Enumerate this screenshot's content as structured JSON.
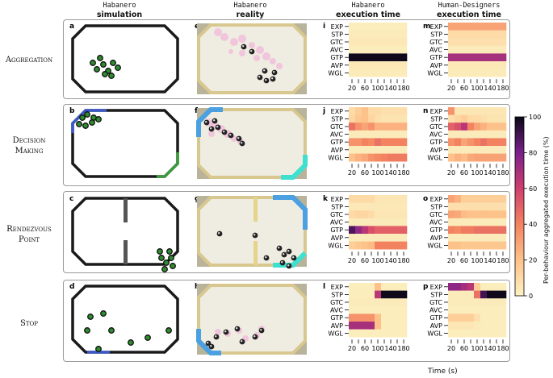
{
  "header": {
    "col1_mono": "Habanero",
    "col1_bold": "simulation",
    "col2_mono": "Habanero",
    "col2_bold": "reality",
    "col3_mono": "Habanero",
    "col3_bold": "execution time",
    "col4_mono": "Human-Designers",
    "col4_bold": "execution time"
  },
  "rows": [
    {
      "line1": "Aggregation",
      "line2": "",
      "panels": [
        "a",
        "e",
        "i",
        "m"
      ]
    },
    {
      "line1": "Decision",
      "line2": "Making",
      "panels": [
        "b",
        "f",
        "j",
        "n"
      ]
    },
    {
      "line1": "Rendezvous",
      "line2": "Point",
      "panels": [
        "c",
        "g",
        "k",
        "o"
      ]
    },
    {
      "line1": "Stop",
      "line2": "",
      "panels": [
        "d",
        "h",
        "l",
        "p"
      ]
    }
  ],
  "xaxis": {
    "label": "Time (s)"
  },
  "colorbar": {
    "title": "Per-behaviour aggregated execution time (%)",
    "ticks": [
      "0",
      "20",
      "40",
      "60",
      "80",
      "100"
    ]
  },
  "colors": {
    "arena_wall": "#1a1a1a",
    "robot": "#2e8b2e",
    "trail_pink": "#f2b8da",
    "decision_blue": "#3b58c8",
    "decision_green": "#3e9a3e",
    "cyan": "#3fe0d0",
    "floor": "#efece2"
  },
  "chart_data": {
    "type": "heatmap",
    "ylabels": [
      "EXP",
      "STP",
      "GTC",
      "AVC",
      "GTP",
      "AVP",
      "WGL"
    ],
    "xticks": [
      20,
      60,
      100,
      140,
      180
    ],
    "xlabel": "Time (s)",
    "zlim": [
      0,
      100
    ],
    "cmap": "magma_r",
    "columns": 9,
    "panels": [
      {
        "id": "i",
        "behaviour": "Aggregation",
        "designer": "Habanero",
        "values": [
          [
            2,
            2,
            2,
            2,
            2,
            2,
            2,
            2,
            2
          ],
          [
            3,
            3,
            3,
            3,
            3,
            3,
            3,
            3,
            3
          ],
          [
            4,
            4,
            4,
            4,
            4,
            4,
            4,
            4,
            4
          ],
          [
            2,
            2,
            2,
            2,
            2,
            2,
            2,
            2,
            2
          ],
          [
            99,
            99,
            99,
            99,
            99,
            99,
            99,
            99,
            99
          ],
          [
            4,
            4,
            4,
            4,
            4,
            4,
            4,
            4,
            4
          ],
          [
            3,
            3,
            3,
            3,
            3,
            3,
            3,
            3,
            3
          ]
        ]
      },
      {
        "id": "m",
        "behaviour": "Aggregation",
        "designer": "Human-Designers",
        "values": [
          [
            30,
            30,
            30,
            30,
            30,
            30,
            30,
            30,
            30
          ],
          [
            10,
            10,
            10,
            10,
            10,
            10,
            10,
            10,
            10
          ],
          [
            8,
            8,
            8,
            8,
            8,
            8,
            8,
            8,
            8
          ],
          [
            3,
            3,
            3,
            3,
            3,
            3,
            3,
            3,
            3
          ],
          [
            70,
            70,
            70,
            70,
            70,
            70,
            70,
            70,
            70
          ],
          [
            4,
            4,
            4,
            4,
            4,
            4,
            4,
            4,
            4
          ],
          [
            3,
            3,
            3,
            3,
            3,
            3,
            3,
            3,
            3
          ]
        ]
      },
      {
        "id": "j",
        "behaviour": "Decision Making",
        "designer": "Habanero",
        "values": [
          [
            10,
            15,
            20,
            10,
            10,
            8,
            8,
            8,
            8
          ],
          [
            12,
            18,
            20,
            12,
            8,
            6,
            6,
            6,
            6
          ],
          [
            45,
            35,
            30,
            35,
            25,
            25,
            25,
            25,
            25
          ],
          [
            3,
            3,
            3,
            3,
            3,
            3,
            3,
            3,
            3
          ],
          [
            35,
            35,
            40,
            38,
            45,
            40,
            40,
            40,
            40
          ],
          [
            3,
            3,
            3,
            3,
            3,
            3,
            3,
            3,
            3
          ],
          [
            20,
            25,
            28,
            35,
            38,
            40,
            42,
            42,
            42
          ]
        ]
      },
      {
        "id": "n",
        "behaviour": "Decision Making",
        "designer": "Human-Designers",
        "values": [
          [
            35,
            5,
            5,
            5,
            5,
            5,
            5,
            5,
            5
          ],
          [
            8,
            12,
            15,
            10,
            10,
            8,
            6,
            6,
            6
          ],
          [
            50,
            55,
            65,
            40,
            30,
            25,
            20,
            20,
            20
          ],
          [
            3,
            3,
            3,
            3,
            3,
            3,
            3,
            3,
            3
          ],
          [
            35,
            40,
            30,
            35,
            40,
            45,
            40,
            40,
            40
          ],
          [
            3,
            3,
            3,
            3,
            3,
            3,
            3,
            3,
            3
          ],
          [
            20,
            25,
            22,
            28,
            30,
            30,
            30,
            30,
            30
          ]
        ]
      },
      {
        "id": "k",
        "behaviour": "Rendezvous Point",
        "designer": "Habanero",
        "values": [
          [
            10,
            10,
            10,
            10,
            5,
            5,
            5,
            5,
            5
          ],
          [
            4,
            4,
            4,
            4,
            4,
            4,
            4,
            4,
            4
          ],
          [
            10,
            12,
            12,
            10,
            5,
            5,
            5,
            5,
            5
          ],
          [
            3,
            3,
            3,
            3,
            3,
            3,
            3,
            3,
            3
          ],
          [
            88,
            75,
            65,
            55,
            50,
            50,
            50,
            50,
            50
          ],
          [
            3,
            3,
            3,
            3,
            3,
            3,
            3,
            3,
            3
          ],
          [
            15,
            18,
            20,
            22,
            40,
            40,
            40,
            40,
            40
          ]
        ]
      },
      {
        "id": "o",
        "behaviour": "Rendezvous Point",
        "designer": "Human-Designers",
        "values": [
          [
            30,
            25,
            15,
            15,
            15,
            15,
            15,
            15,
            15
          ],
          [
            8,
            8,
            8,
            8,
            8,
            8,
            8,
            8,
            8
          ],
          [
            30,
            28,
            22,
            20,
            20,
            20,
            20,
            20,
            20
          ],
          [
            3,
            3,
            3,
            3,
            3,
            3,
            3,
            3,
            3
          ],
          [
            40,
            38,
            42,
            42,
            45,
            45,
            45,
            45,
            45
          ],
          [
            3,
            3,
            3,
            3,
            3,
            3,
            3,
            3,
            3
          ],
          [
            20,
            20,
            18,
            18,
            18,
            18,
            18,
            18,
            18
          ]
        ]
      },
      {
        "id": "l",
        "behaviour": "Stop",
        "designer": "Habanero",
        "values": [
          [
            2,
            2,
            2,
            2,
            20,
            2,
            2,
            2,
            2
          ],
          [
            2,
            2,
            2,
            2,
            65,
            99,
            99,
            99,
            99
          ],
          [
            3,
            3,
            3,
            3,
            3,
            3,
            3,
            3,
            3
          ],
          [
            2,
            2,
            2,
            2,
            2,
            2,
            2,
            2,
            2
          ],
          [
            35,
            35,
            35,
            35,
            20,
            2,
            2,
            2,
            2
          ],
          [
            70,
            70,
            70,
            70,
            20,
            2,
            2,
            2,
            2
          ],
          [
            2,
            2,
            2,
            2,
            2,
            2,
            2,
            2,
            2
          ]
        ]
      },
      {
        "id": "p",
        "behaviour": "Stop",
        "designer": "Human-Designers",
        "values": [
          [
            75,
            75,
            70,
            65,
            15,
            2,
            2,
            2,
            2
          ],
          [
            3,
            3,
            3,
            3,
            45,
            90,
            99,
            99,
            99
          ],
          [
            3,
            3,
            3,
            3,
            3,
            3,
            3,
            3,
            3
          ],
          [
            2,
            2,
            2,
            2,
            2,
            2,
            2,
            2,
            2
          ],
          [
            15,
            15,
            15,
            15,
            8,
            2,
            2,
            2,
            2
          ],
          [
            5,
            5,
            5,
            5,
            3,
            2,
            2,
            2,
            2
          ],
          [
            2,
            2,
            2,
            2,
            2,
            2,
            2,
            2,
            2
          ]
        ]
      }
    ]
  }
}
